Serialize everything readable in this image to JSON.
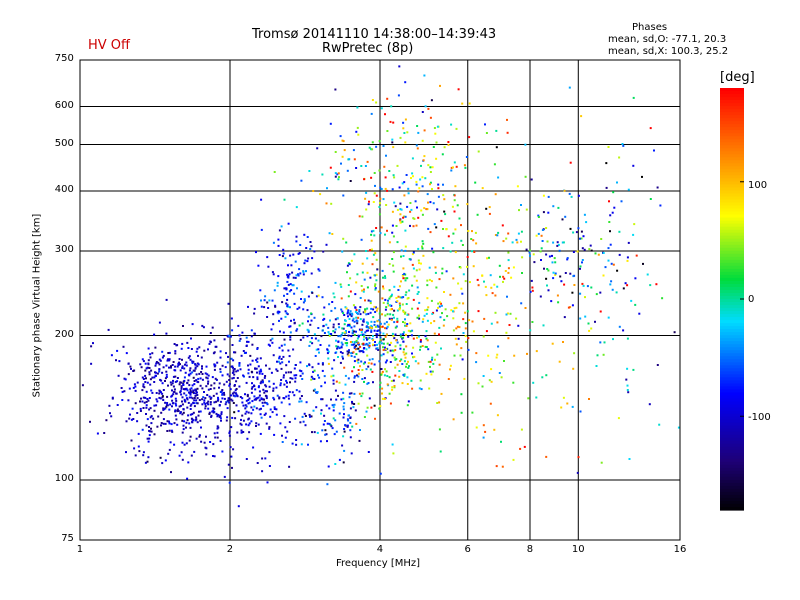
{
  "header": {
    "title_line1": "Tromsø 20141110 14:38:00–14:39:43",
    "title_line2": "RwPretec (8p)",
    "status_label": "HV Off",
    "status_color": "#cc0000"
  },
  "phases": {
    "heading": "Phases",
    "o_line": "mean, sd,O: -77.1, 20.3",
    "x_line": "mean, sd,X: 100.3, 25.2"
  },
  "colorbar": {
    "label": "[deg]",
    "ticks": [
      "100",
      "0",
      "-100"
    ]
  },
  "chart_data": {
    "type": "scatter",
    "xlabel": "Frequency [MHz]",
    "ylabel": "Stationary phase Virtual Height [km]",
    "xscale": "log",
    "yscale": "log",
    "xlim": [
      1,
      16
    ],
    "ylim": [
      75,
      750
    ],
    "xticks": [
      "1",
      "2",
      "4",
      "6",
      "8",
      "10",
      "16"
    ],
    "yticks": [
      "75",
      "100",
      "200",
      "300",
      "400",
      "500",
      "600",
      "750"
    ],
    "color_variable": "phase [deg]",
    "color_range": [
      -180,
      180
    ],
    "grid": true,
    "clusters": [
      {
        "x": 1.6,
        "y": 150,
        "sx": 0.16,
        "sy": 0.14,
        "c": -105,
        "sc": 18,
        "n": 650
      },
      {
        "x": 2.3,
        "y": 155,
        "sx": 0.12,
        "sy": 0.15,
        "c": -95,
        "sc": 20,
        "n": 300
      },
      {
        "x": 2.6,
        "y": 250,
        "sx": 0.08,
        "sy": 0.15,
        "c": -80,
        "sc": 25,
        "n": 150
      },
      {
        "x": 3.6,
        "y": 200,
        "sx": 0.12,
        "sy": 0.08,
        "c": -60,
        "sc": 40,
        "n": 300
      },
      {
        "x": 3.2,
        "y": 140,
        "sx": 0.1,
        "sy": 0.12,
        "c": -80,
        "sc": 40,
        "n": 120
      },
      {
        "x": 4.2,
        "y": 210,
        "sx": 0.14,
        "sy": 0.2,
        "c": 40,
        "sc": 70,
        "n": 400
      },
      {
        "x": 4.5,
        "y": 400,
        "sx": 0.2,
        "sy": 0.25,
        "c": 30,
        "sc": 90,
        "n": 300
      },
      {
        "x": 6.3,
        "y": 220,
        "sx": 0.2,
        "sy": 0.3,
        "c": 70,
        "sc": 60,
        "n": 220
      },
      {
        "x": 9.5,
        "y": 300,
        "sx": 0.14,
        "sy": 0.15,
        "c": -40,
        "sc": 60,
        "n": 120
      },
      {
        "x": 12,
        "y": 250,
        "sx": 0.15,
        "sy": 0.5,
        "c": 0,
        "sc": 120,
        "n": 90
      }
    ]
  }
}
